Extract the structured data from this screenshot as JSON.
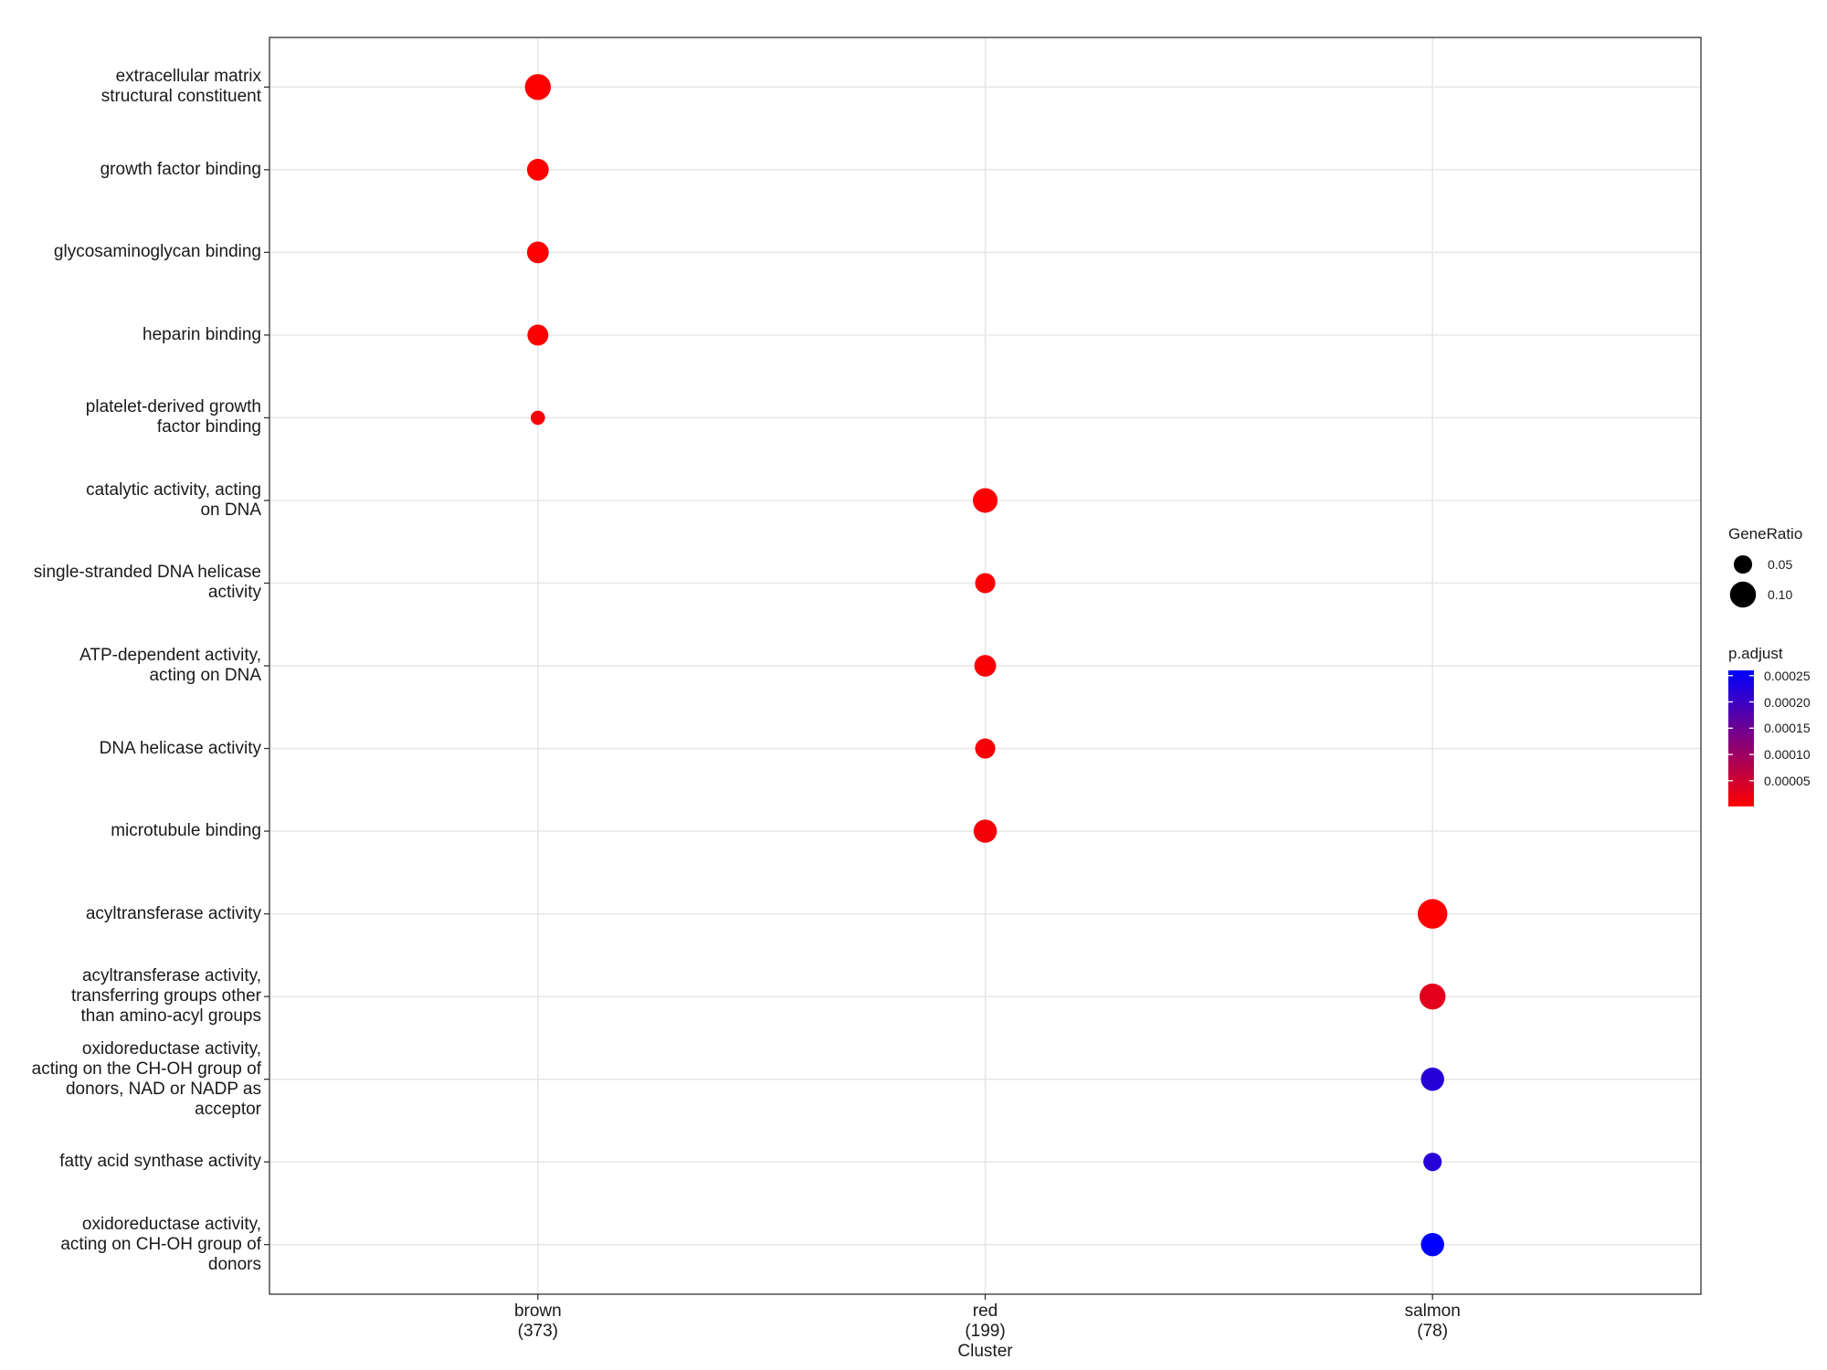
{
  "chart_data": {
    "type": "dot",
    "x_label": "Cluster",
    "groups": [
      {
        "cluster": "brown\n(373)",
        "terms": [
          "extracellular matrix\nstructural constituent",
          "growth factor binding",
          "glycosaminoglycan binding",
          "heparin binding",
          "platelet-derived growth\nfactor binding"
        ],
        "gene_ratio": [
          0.1,
          0.07,
          0.07,
          0.065,
          0.03
        ],
        "p_adjust": [
          1e-06,
          2e-06,
          2e-06,
          3e-06,
          8e-06
        ]
      },
      {
        "cluster": "red\n(199)",
        "terms": [
          "catalytic activity, acting\non DNA",
          "single-stranded DNA helicase\nactivity",
          "ATP-dependent activity,\nacting on DNA",
          "DNA helicase activity",
          "microtubule binding"
        ],
        "gene_ratio": [
          0.09,
          0.06,
          0.07,
          0.06,
          0.08
        ],
        "p_adjust": [
          3e-06,
          5e-06,
          6e-06,
          8e-06,
          1e-05
        ]
      },
      {
        "cluster": "salmon\n(78)",
        "terms": [
          "acyltransferase activity",
          "acyltransferase activity,\ntransferring groups other\nthan amino-acyl groups",
          "oxidoreductase activity,\nacting on the CH-OH group of\ndonors, NAD or NADP as\nacceptor",
          "fatty acid synthase activity",
          "oxidoreductase activity,\nacting on CH-OH group of\ndonors"
        ],
        "gene_ratio": [
          0.13,
          0.1,
          0.08,
          0.05,
          0.08
        ],
        "p_adjust": [
          1e-06,
          3e-05,
          0.00022,
          0.00022,
          0.00026
        ]
      }
    ],
    "size_legend": {
      "title": "GeneRatio",
      "ticks": [
        0.05,
        {
          "value": 0.1,
          "label": "0.10"
        }
      ]
    },
    "color_legend": {
      "title": "p.adjust",
      "low": "#ff0000",
      "high": "#0000ff",
      "ticks": [
        5e-05,
        {
          "value": 0.0001,
          "label": "0.00010"
        },
        0.00015,
        {
          "value": 0.0002,
          "label": "0.00020"
        },
        0.00025
      ]
    },
    "grid": true
  }
}
